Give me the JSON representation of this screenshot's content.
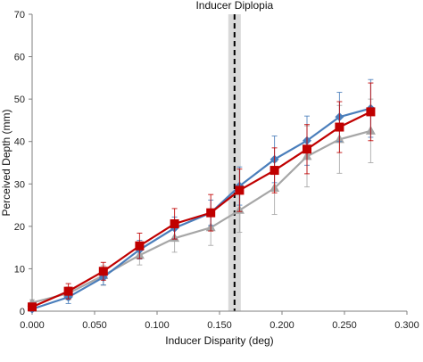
{
  "caption": "",
  "chart_data": {
    "type": "line",
    "title": "",
    "xlabel": "Inducer Disparity (deg)",
    "ylabel": "Perceived Depth (mm)",
    "xlim": [
      0,
      0.3
    ],
    "ylim": [
      0,
      70
    ],
    "xticks": [
      0,
      0.05,
      0.1,
      0.15,
      0.2,
      0.25,
      0.3
    ],
    "xtick_labels": [
      "0.000",
      "0.050",
      "0.100",
      "0.150",
      "0.200",
      "0.250",
      "0.300"
    ],
    "yticks": [
      0,
      10,
      20,
      30,
      40,
      50,
      60,
      70
    ],
    "ytick_labels": [
      "0",
      "10",
      "20",
      "30",
      "40",
      "50",
      "60",
      "70"
    ],
    "grid": false,
    "legend": "none",
    "x": [
      0,
      0.029,
      0.057,
      0.086,
      0.114,
      0.143,
      0.166,
      0.194,
      0.22,
      0.246,
      0.271
    ],
    "series": [
      {
        "color": "#4a7ebb",
        "marker": "diamond",
        "values": [
          0.5,
          3.3,
          8.0,
          14.5,
          19.6,
          23.2,
          29.5,
          35.8,
          40.2,
          45.8,
          47.8
        ],
        "errors": [
          0.6,
          1.5,
          1.8,
          2.2,
          2.6,
          3.0,
          4.5,
          5.5,
          5.8,
          5.8,
          6.8
        ]
      },
      {
        "color": "#c00000",
        "marker": "square",
        "values": [
          1.0,
          4.7,
          9.4,
          15.4,
          20.6,
          23.2,
          28.5,
          33.2,
          38.2,
          43.4,
          47.0
        ],
        "errors": [
          0.7,
          1.8,
          2.1,
          3.0,
          3.6,
          4.3,
          5.0,
          5.3,
          5.8,
          6.0,
          6.8
        ]
      },
      {
        "color": "#a6a6a6",
        "marker": "triangle",
        "values": [
          2.0,
          4.2,
          8.4,
          13.2,
          17.2,
          19.7,
          23.8,
          29.0,
          36.5,
          40.5,
          42.5
        ],
        "errors": [
          0.7,
          1.5,
          2.3,
          2.3,
          3.3,
          4.2,
          5.2,
          6.2,
          7.2,
          8.0,
          7.5
        ]
      }
    ],
    "annotations": [
      {
        "label": "Inducer Diplopia",
        "x": 0.162,
        "band": [
          0.157,
          0.167
        ],
        "line_style": "dashed",
        "line_color": "#000000",
        "band_color": "#d9d9d9"
      }
    ]
  }
}
